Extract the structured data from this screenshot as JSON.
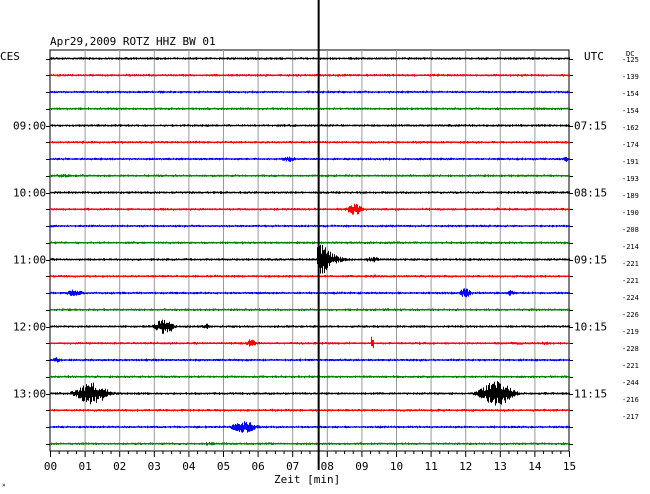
{
  "chart_data": {
    "type": "line",
    "title": "Apr29,2009   ROTZ HHZ BW 01",
    "left_timezone": "CES",
    "right_timezone": "UTC",
    "dc_label": "DC",
    "xlabel": "Zeit [min]",
    "xlim": [
      0,
      15
    ],
    "x_ticks": [
      "00",
      "01",
      "02",
      "03",
      "04",
      "05",
      "06",
      "07",
      "08",
      "09",
      "10",
      "11",
      "12",
      "13",
      "14",
      "15"
    ],
    "line_colors": [
      "#000000",
      "#ff0000",
      "#0000ff",
      "#008000"
    ],
    "left_labels": [
      {
        "row": 4,
        "text": "09:00"
      },
      {
        "row": 8,
        "text": "10:00"
      },
      {
        "row": 12,
        "text": "11:00"
      },
      {
        "row": 16,
        "text": "12:00"
      },
      {
        "row": 20,
        "text": "13:00"
      }
    ],
    "right_labels": [
      {
        "row": 4,
        "text": "07:15"
      },
      {
        "row": 8,
        "text": "08:15"
      },
      {
        "row": 12,
        "text": "09:15"
      },
      {
        "row": 16,
        "text": "10:15"
      },
      {
        "row": 20,
        "text": "11:15"
      }
    ],
    "dc_values": [
      "-125",
      "-139",
      "-154",
      "-154",
      "-162",
      "-174",
      "-191",
      "-193",
      "-189",
      "-190",
      "-208",
      "-214",
      "-221",
      "-221",
      "-224",
      "-226",
      "-219",
      "-228",
      "-221",
      "-244",
      "-216",
      "-217"
    ],
    "marker_minute": 7.75,
    "events": [
      {
        "row": 6,
        "minute": 6.9,
        "amp": 3,
        "dur": 0.5,
        "kind": "small"
      },
      {
        "row": 6,
        "minute": 14.9,
        "amp": 3,
        "dur": 0.2,
        "kind": "small"
      },
      {
        "row": 7,
        "minute": 0.4,
        "amp": 2,
        "dur": 0.6,
        "kind": "small"
      },
      {
        "row": 9,
        "minute": 8.8,
        "amp": 6,
        "dur": 0.5,
        "kind": "burst"
      },
      {
        "row": 9,
        "minute": 12.9,
        "amp": 2,
        "dur": 0.4,
        "kind": "small"
      },
      {
        "row": 12,
        "minute": 7.75,
        "amp": 24,
        "dur": 1.2,
        "kind": "quake"
      },
      {
        "row": 12,
        "minute": 9.3,
        "amp": 3,
        "dur": 0.5,
        "kind": "small"
      },
      {
        "row": 13,
        "minute": 9.4,
        "amp": 2,
        "dur": 0.4,
        "kind": "small"
      },
      {
        "row": 14,
        "minute": 0.7,
        "amp": 4,
        "dur": 0.5,
        "kind": "burst"
      },
      {
        "row": 14,
        "minute": 12.0,
        "amp": 5,
        "dur": 0.4,
        "kind": "burst"
      },
      {
        "row": 14,
        "minute": 13.3,
        "amp": 3,
        "dur": 0.3,
        "kind": "small"
      },
      {
        "row": 16,
        "minute": 3.3,
        "amp": 8,
        "dur": 0.6,
        "kind": "burst"
      },
      {
        "row": 16,
        "minute": 4.5,
        "amp": 3,
        "dur": 0.3,
        "kind": "small"
      },
      {
        "row": 17,
        "minute": 5.8,
        "amp": 5,
        "dur": 0.3,
        "kind": "burst"
      },
      {
        "row": 17,
        "minute": 9.3,
        "amp": 9,
        "dur": 0.1,
        "kind": "spike"
      },
      {
        "row": 17,
        "minute": 13.5,
        "amp": 2,
        "dur": 0.5,
        "kind": "small"
      },
      {
        "row": 17,
        "minute": 14.3,
        "amp": 2,
        "dur": 0.3,
        "kind": "small"
      },
      {
        "row": 18,
        "minute": 0.2,
        "amp": 3,
        "dur": 0.3,
        "kind": "small"
      },
      {
        "row": 20,
        "minute": 1.2,
        "amp": 11,
        "dur": 1.0,
        "kind": "burst"
      },
      {
        "row": 20,
        "minute": 12.9,
        "amp": 13,
        "dur": 1.0,
        "kind": "burst"
      },
      {
        "row": 22,
        "minute": 5.6,
        "amp": 6,
        "dur": 0.8,
        "kind": "burst"
      },
      {
        "row": 23,
        "minute": 4.6,
        "amp": 2,
        "dur": 0.5,
        "kind": "small"
      }
    ]
  }
}
